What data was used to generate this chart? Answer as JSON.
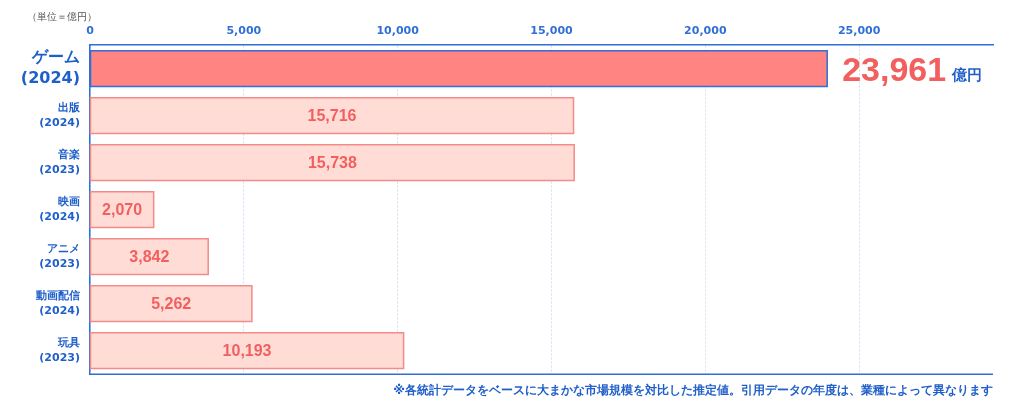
{
  "chart_data": {
    "type": "bar",
    "orientation": "horizontal",
    "categories": [
      "ゲーム\n(2024)",
      "出版\n(2024)",
      "音楽\n(2023)",
      "映画\n(2024)",
      "アニメ\n(2023)",
      "動画配信\n(2024)",
      "玩具\n(2023)"
    ],
    "values": [
      23961,
      15716,
      15738,
      2070,
      3842,
      5262,
      10193
    ],
    "colors": [
      "#ff8482",
      "#ffddd6",
      "#ffddd6",
      "#ffddd6",
      "#ffddd6",
      "#ffddd6",
      "#ffddd6"
    ],
    "value_labels": [
      "23,961 億円",
      "15,716",
      "15,738",
      "2,070",
      "3,842",
      "5,262",
      "10,193"
    ],
    "xlim": [
      0,
      29350
    ],
    "xticks": [
      0,
      {
        "value": 5000,
        "label": "5,000"
      },
      {
        "value": 10000,
        "label": "10,000"
      },
      {
        "value": 15000,
        "label": "15,000"
      },
      {
        "value": 20000,
        "label": "20,000"
      },
      {
        "value": 25000,
        "label": "25,000"
      }
    ],
    "grid": "x",
    "annotations": [
      "（単位＝億円）",
      "※各統計データをベースに大まかな市場規模を対比した推定値。引用データの年度は、業種によって異なります"
    ]
  }
}
